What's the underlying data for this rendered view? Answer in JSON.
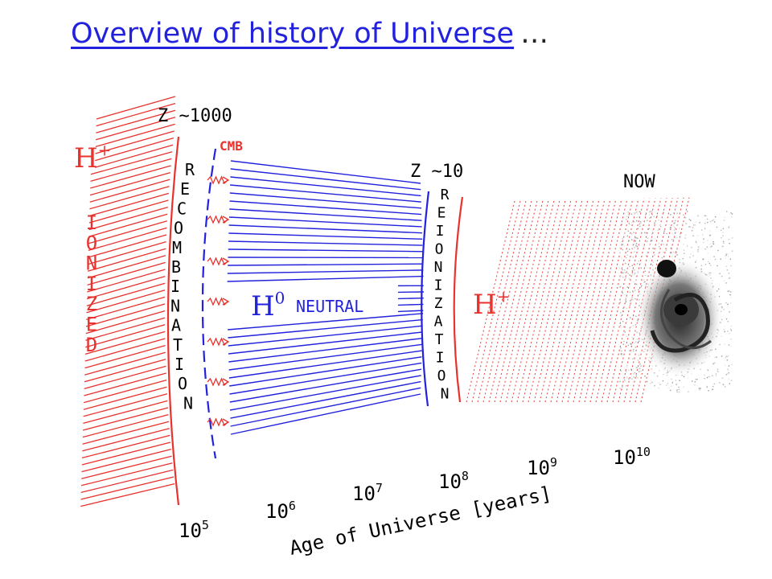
{
  "title": {
    "link_text": "Overview of history of Universe",
    "trailing": "…"
  },
  "diagram": {
    "z_recombination": "Z ~1000",
    "z_reionization": "Z ~10",
    "cmb": "CMB",
    "now": "NOW",
    "ionized_h_plus": "H+",
    "ionized_word": "IONIZED",
    "recombination_word": "RECOMBINATION",
    "neutral_h0": "H0",
    "neutral_word": "NEUTRAL",
    "reionization_word": "REIONIZATION",
    "reionized_h_plus": "H+",
    "axis_title": "Age of Universe [years]",
    "ticks": [
      "10^5",
      "10^6",
      "10^7",
      "10^8",
      "10^9",
      "10^10"
    ],
    "colors": {
      "ionized": "#e8322e",
      "neutral": "#2222dd",
      "text": "#000000",
      "title": "#2222dd"
    }
  }
}
